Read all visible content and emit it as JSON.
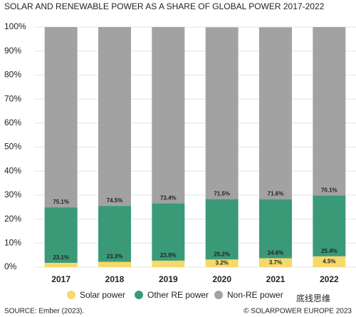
{
  "chart_data": {
    "type": "stacked_bar",
    "title": "SOLAR AND RENEWABLE POWER AS A SHARE OF GLOBAL POWER 2017-2022",
    "categories": [
      "2017",
      "2018",
      "2019",
      "2020",
      "2021",
      "2022"
    ],
    "series": [
      {
        "name": "Solar power",
        "color": "#f6d96b",
        "values": [
          1.8,
          2.2,
          2.7,
          3.2,
          3.7,
          4.5
        ],
        "value_labels": [
          null,
          null,
          null,
          "3.2%",
          "3.7%",
          "4.5%"
        ]
      },
      {
        "name": "Other RE power",
        "color": "#3a9a78",
        "values": [
          23.1,
          23.3,
          23.9,
          25.2,
          24.6,
          25.4
        ],
        "value_labels": [
          "23.1%",
          "23.3%",
          "23.9%",
          "25.2%",
          "24.6%",
          "25.4%"
        ]
      },
      {
        "name": "Non-RE power",
        "color": "#a2a2a2",
        "values": [
          75.1,
          74.5,
          73.4,
          71.5,
          71.6,
          70.1
        ],
        "value_labels": [
          "75.1%",
          "74.5%",
          "73.4%",
          "71.5%",
          "71.6%",
          "70.1%"
        ]
      }
    ],
    "ylim": [
      0,
      100
    ],
    "yticks": [
      {
        "value": 0,
        "label": "0%"
      },
      {
        "value": 10,
        "label": "10%"
      },
      {
        "value": 20,
        "label": "20%"
      },
      {
        "value": 30,
        "label": "30%"
      },
      {
        "value": 40,
        "label": "40%"
      },
      {
        "value": 50,
        "label": "50%"
      },
      {
        "value": 60,
        "label": "60%"
      },
      {
        "value": 70,
        "label": "70%"
      },
      {
        "value": 80,
        "label": "80%"
      },
      {
        "value": 90,
        "label": "90%"
      },
      {
        "value": 100,
        "label": "100%"
      }
    ],
    "grid": true,
    "source": "SOURCE: Ember (2023).",
    "credit": "© SOLARPOWER EUROPE 2023",
    "watermark": "底线思维"
  }
}
